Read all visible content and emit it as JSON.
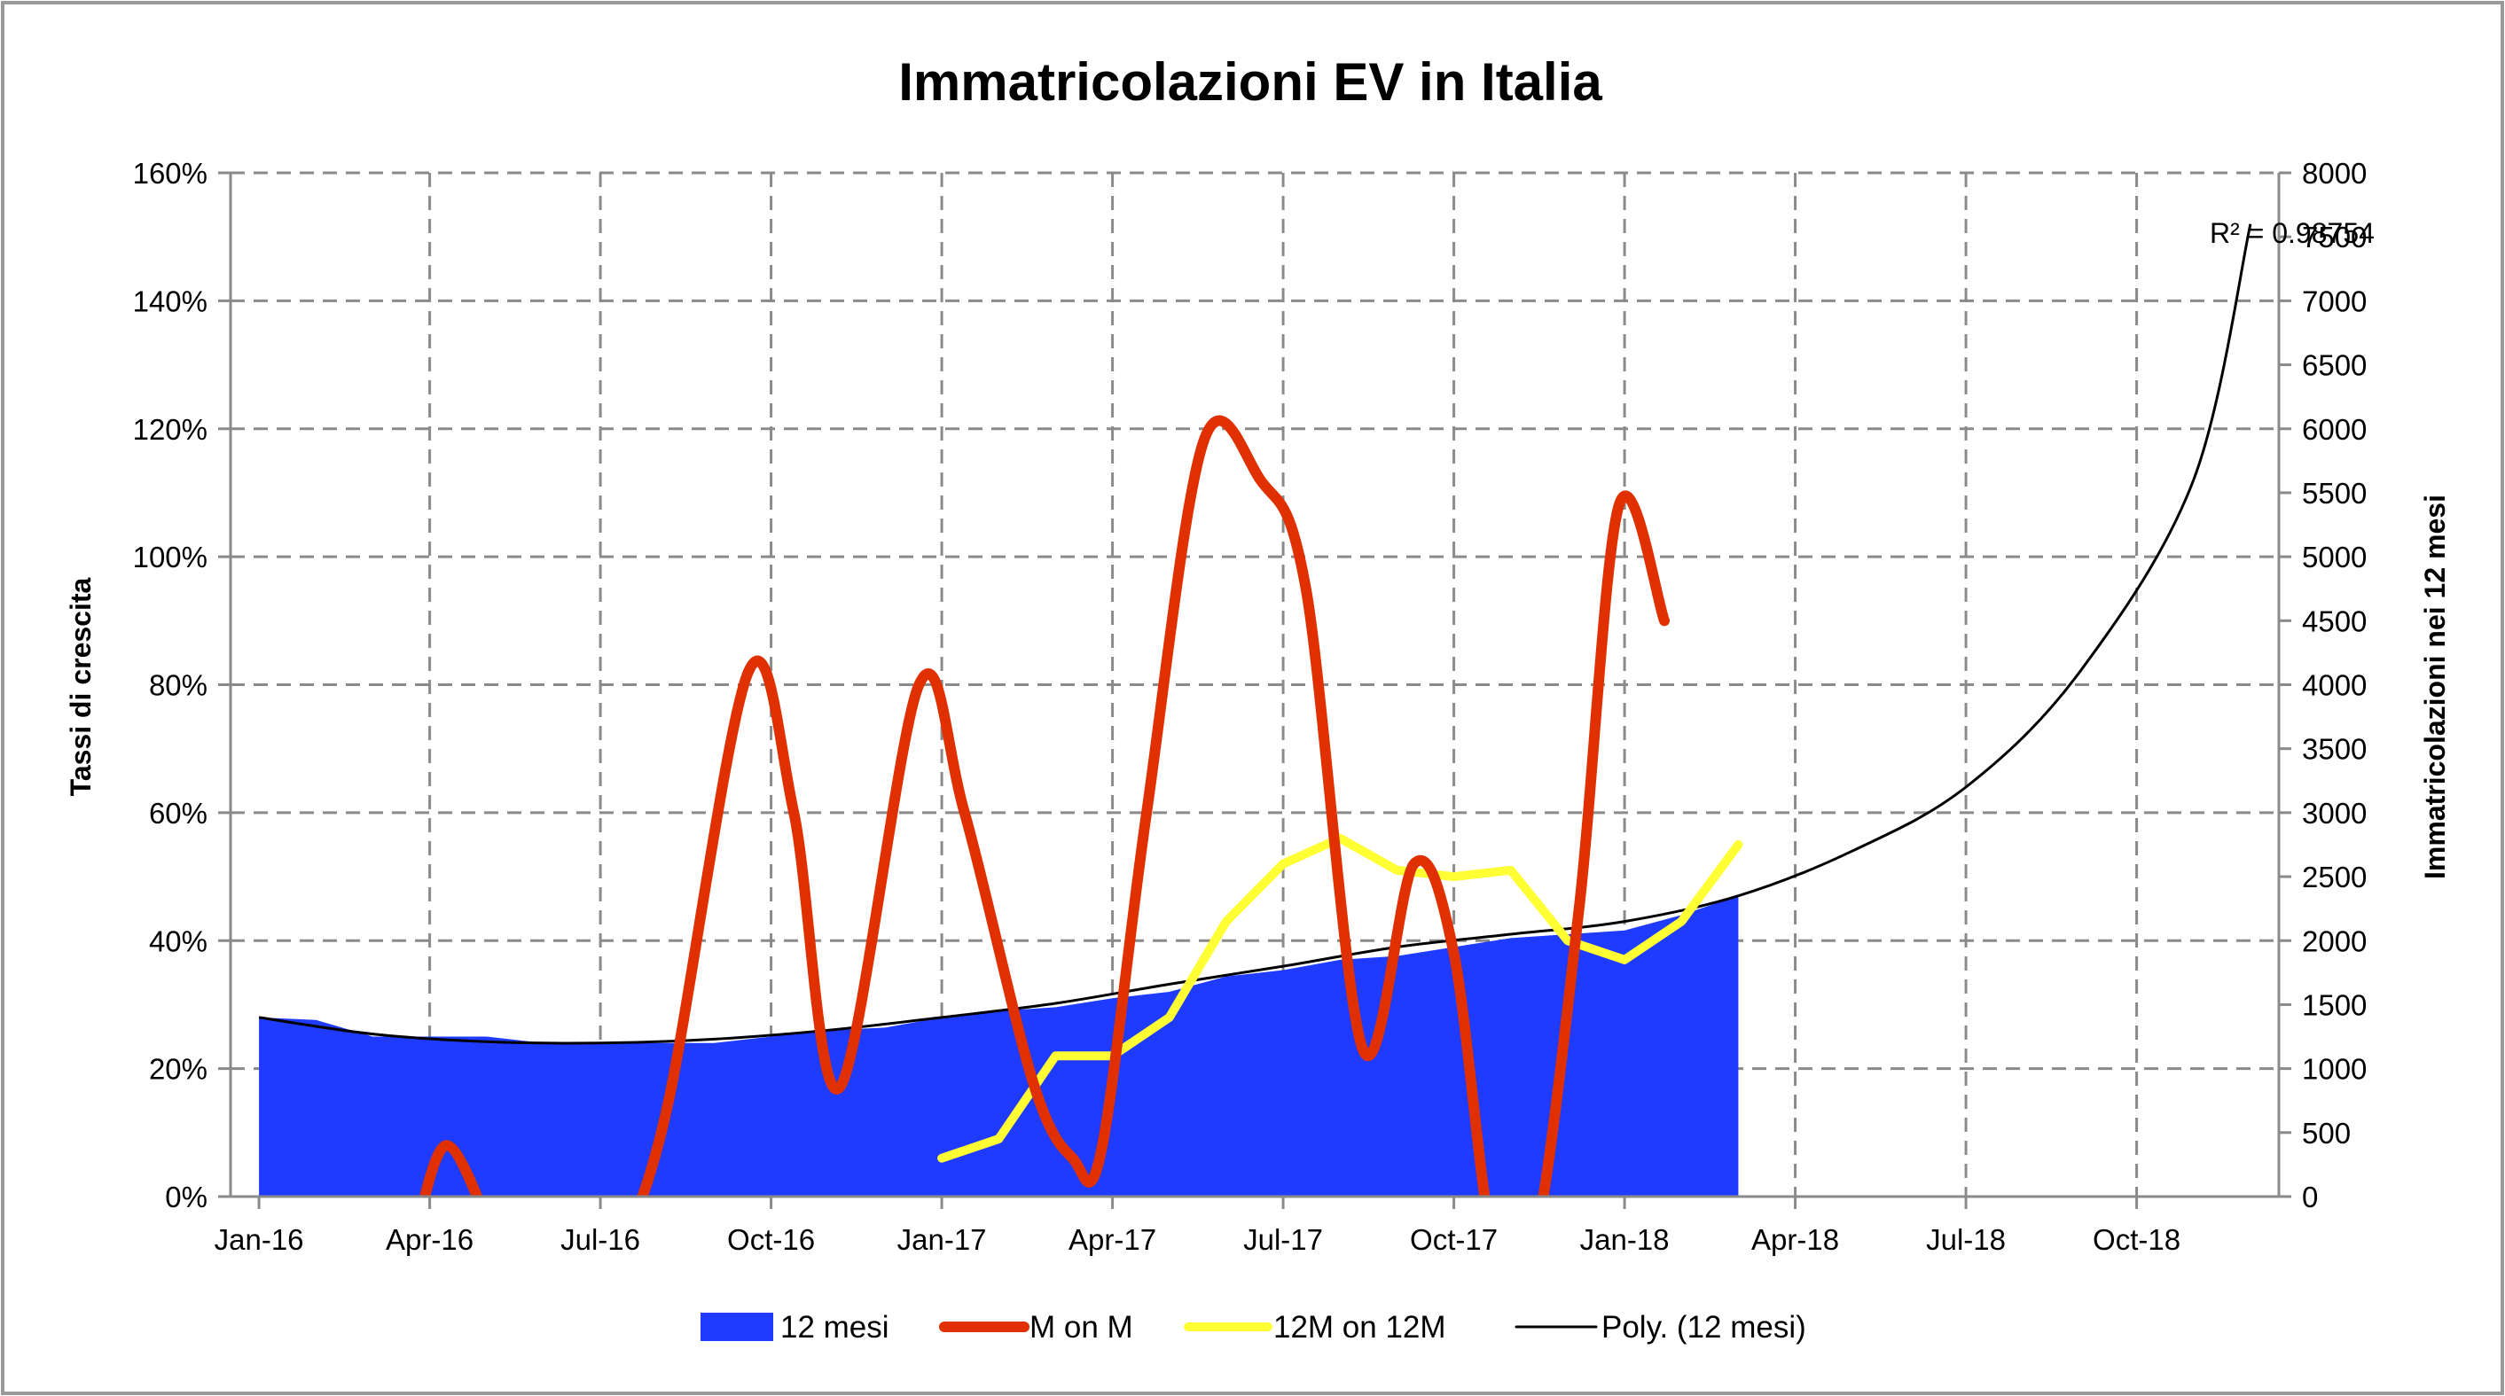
{
  "chart_data": {
    "type": "area+line",
    "title": "Immatricolazioni EV in Italia",
    "ylabel_left": "Tassi di crescita",
    "ylabel_right": "Immatricolazioni nei 12 mesi",
    "y_left_range": [
      0,
      160
    ],
    "y_left_ticks": [
      "0%",
      "20%",
      "40%",
      "60%",
      "80%",
      "100%",
      "120%",
      "140%",
      "160%"
    ],
    "y_right_range": [
      0,
      8000
    ],
    "y_right_ticks": [
      "0",
      "500",
      "1000",
      "1500",
      "2000",
      "2500",
      "3000",
      "3500",
      "4000",
      "4500",
      "5000",
      "5500",
      "6000",
      "6500",
      "7000",
      "7500",
      "8000"
    ],
    "x_ticks": [
      "Jan-16",
      "Apr-16",
      "Jul-16",
      "Oct-16",
      "Jan-17",
      "Apr-17",
      "Jul-17",
      "Oct-17",
      "Jan-18",
      "Apr-18",
      "Jul-18",
      "Oct-18"
    ],
    "x_range_months": [
      -0.5,
      35.5
    ],
    "grid": "dashed",
    "legend_position": "bottom",
    "annotation": "R² = 0.98754",
    "series": [
      {
        "name": "12 mesi",
        "kind": "area",
        "axis": "right",
        "color": "#1f3bff",
        "x": [
          0,
          1,
          2,
          3,
          4,
          5,
          6,
          7,
          8,
          9,
          10,
          11,
          12,
          13,
          14,
          15,
          16,
          17,
          18,
          19,
          20,
          21,
          22,
          23,
          24,
          25,
          26
        ],
        "values": [
          1400,
          1380,
          1250,
          1250,
          1250,
          1200,
          1200,
          1200,
          1200,
          1250,
          1300,
          1320,
          1400,
          1450,
          1480,
          1550,
          1600,
          1720,
          1770,
          1850,
          1880,
          1950,
          2020,
          2050,
          2080,
          2200,
          2350
        ]
      },
      {
        "name": "M on M",
        "kind": "line",
        "axis": "left",
        "color": "#e03000",
        "x": [
          2.7,
          3.3,
          4.2,
          6.4,
          7.2,
          8.6,
          9.4,
          10.2,
          11.6,
          12.4,
          13.6,
          14.3,
          14.8,
          15.6,
          16.6,
          17.6,
          18.4,
          19.4,
          20.3,
          21.0,
          21.7,
          22.4,
          23.2,
          23.9,
          24.7,
          25.8,
          26.6
        ],
        "values": [
          -8,
          8,
          -8,
          -8,
          15,
          82,
          60,
          17,
          80,
          60,
          18,
          6,
          7,
          60,
          118,
          112,
          95,
          23,
          52,
          38,
          -8,
          -8,
          45,
          108,
          90,
          null,
          null
        ]
      },
      {
        "name": "12M on 12M",
        "kind": "line",
        "axis": "left",
        "color": "#ffff33",
        "x": [
          12,
          13,
          14,
          15,
          16,
          17,
          18,
          19,
          20,
          21,
          22,
          23,
          24,
          25,
          26
        ],
        "values": [
          6,
          9,
          22,
          22,
          28,
          43,
          52,
          56,
          51,
          50,
          51,
          40,
          37,
          43,
          55
        ]
      },
      {
        "name": "Poly. (12 mesi)",
        "kind": "trendline",
        "axis": "right",
        "color": "#000000",
        "x": [
          0,
          2,
          4,
          6,
          8,
          10,
          12,
          14,
          16,
          18,
          20,
          22,
          24,
          26,
          28,
          30,
          32,
          34,
          35
        ],
        "values": [
          1400,
          1270,
          1210,
          1200,
          1230,
          1300,
          1400,
          1510,
          1660,
          1800,
          1950,
          2050,
          2150,
          2350,
          2700,
          3200,
          4100,
          5600,
          7600
        ]
      }
    ]
  }
}
